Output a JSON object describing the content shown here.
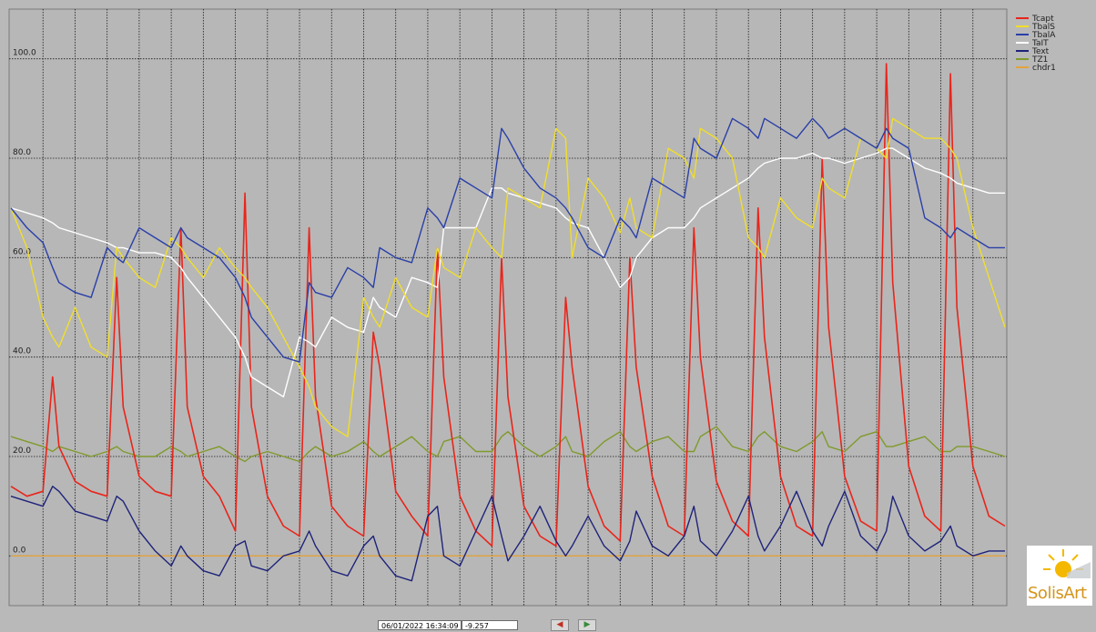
{
  "chart_data": {
    "type": "line",
    "title": "",
    "xlabel": "",
    "ylabel": "",
    "ylim": [
      -10,
      110
    ],
    "xlim": [
      0,
      31
    ],
    "yticks": [
      "0.0",
      "20.0",
      "40.0",
      "60.0",
      "80.0",
      "100.0"
    ],
    "grid": true,
    "legend_position": "top-right",
    "x": [
      0,
      0.5,
      1,
      1.3,
      1.5,
      2,
      2.5,
      3,
      3.3,
      3.5,
      4,
      4.5,
      5,
      5.3,
      5.5,
      6,
      6.5,
      7,
      7.3,
      7.5,
      8,
      8.5,
      9,
      9.3,
      9.5,
      10,
      10.5,
      11,
      11.3,
      11.5,
      12,
      12.5,
      13,
      13.3,
      13.5,
      14,
      14.5,
      15,
      15.3,
      15.5,
      16,
      16.5,
      17,
      17.3,
      17.5,
      18,
      18.5,
      19,
      19.3,
      19.5,
      20,
      20.5,
      21,
      21.3,
      21.5,
      22,
      22.5,
      23,
      23.3,
      23.5,
      24,
      24.5,
      25,
      25.3,
      25.5,
      26,
      26.5,
      27,
      27.3,
      27.5,
      28,
      28.5,
      29,
      29.3,
      29.5,
      30,
      30.5,
      31
    ],
    "series": [
      {
        "name": "Tcapt",
        "color": "#e8251b",
        "values": [
          14,
          12,
          13,
          36,
          22,
          15,
          13,
          12,
          56,
          30,
          16,
          13,
          12,
          66,
          30,
          16,
          12,
          5,
          73,
          30,
          12,
          6,
          4,
          66,
          32,
          10,
          6,
          4,
          45,
          38,
          13,
          8,
          4,
          62,
          36,
          12,
          5,
          2,
          60,
          32,
          10,
          4,
          2,
          52,
          38,
          14,
          6,
          3,
          60,
          38,
          16,
          6,
          4,
          66,
          40,
          15,
          7,
          4,
          70,
          44,
          16,
          6,
          4,
          80,
          46,
          16,
          7,
          5,
          99,
          55,
          18,
          8,
          5,
          97,
          50,
          18,
          8,
          6
        ]
      },
      {
        "name": "TbalS",
        "color": "#f1de2a",
        "values": [
          70,
          62,
          48,
          44,
          42,
          50,
          42,
          40,
          62,
          60,
          56,
          54,
          64,
          62,
          60,
          56,
          62,
          58,
          56,
          54,
          50,
          44,
          38,
          34,
          30,
          26,
          24,
          52,
          48,
          46,
          56,
          50,
          48,
          62,
          58,
          56,
          66,
          62,
          60,
          74,
          72,
          70,
          86,
          84,
          60,
          76,
          72,
          65,
          72,
          66,
          64,
          82,
          80,
          76,
          86,
          84,
          80,
          64,
          62,
          60,
          72,
          68,
          66,
          76,
          74,
          72,
          84,
          82,
          80,
          88,
          86,
          84,
          84,
          82,
          80,
          66,
          56,
          46
        ]
      },
      {
        "name": "TbalA",
        "color": "#2a3fa8",
        "values": [
          70,
          66,
          63,
          58,
          55,
          53,
          52,
          62,
          60,
          59,
          66,
          64,
          62,
          66,
          64,
          62,
          60,
          56,
          52,
          48,
          44,
          40,
          39,
          55,
          53,
          52,
          58,
          56,
          54,
          62,
          60,
          59,
          70,
          68,
          66,
          76,
          74,
          72,
          86,
          84,
          78,
          74,
          72,
          70,
          68,
          62,
          60,
          68,
          66,
          64,
          76,
          74,
          72,
          84,
          82,
          80,
          88,
          86,
          84,
          88,
          86,
          84,
          88,
          86,
          84,
          86,
          84,
          82,
          86,
          84,
          82,
          68,
          66,
          64,
          66,
          64,
          62,
          62
        ]
      },
      {
        "name": "TaIT",
        "color": "#ffffff",
        "values": [
          70,
          69,
          68,
          67,
          66,
          65,
          64,
          63,
          62,
          62,
          61,
          61,
          60,
          58,
          56,
          52,
          48,
          44,
          40,
          36,
          34,
          32,
          44,
          43,
          42,
          48,
          46,
          45,
          52,
          50,
          48,
          56,
          55,
          54,
          66,
          66,
          66,
          74,
          74,
          73,
          72,
          71,
          70,
          68,
          67,
          66,
          60,
          54,
          56,
          60,
          64,
          66,
          66,
          68,
          70,
          72,
          74,
          76,
          78,
          79,
          80,
          80,
          81,
          80,
          80,
          79,
          80,
          81,
          82,
          82,
          80,
          78,
          77,
          76,
          75,
          74,
          73,
          73
        ]
      },
      {
        "name": "Text",
        "color": "#1e237a",
        "values": [
          12,
          11,
          10,
          14,
          13,
          9,
          8,
          7,
          12,
          11,
          5,
          1,
          -2,
          2,
          0,
          -3,
          -4,
          2,
          3,
          -2,
          -3,
          0,
          1,
          5,
          2,
          -3,
          -4,
          2,
          4,
          0,
          -4,
          -5,
          8,
          10,
          0,
          -2,
          5,
          12,
          4,
          -1,
          4,
          10,
          3,
          0,
          2,
          8,
          2,
          -1,
          3,
          9,
          2,
          0,
          4,
          10,
          3,
          0,
          5,
          12,
          4,
          1,
          6,
          13,
          5,
          2,
          6,
          13,
          4,
          1,
          5,
          12,
          4,
          1,
          3,
          6,
          2,
          0,
          1,
          1
        ]
      },
      {
        "name": "TZ1",
        "color": "#7f9a2c",
        "values": [
          24,
          23,
          22,
          21,
          22,
          21,
          20,
          21,
          22,
          21,
          20,
          20,
          22,
          21,
          20,
          21,
          22,
          20,
          19,
          20,
          21,
          20,
          19,
          21,
          22,
          20,
          21,
          23,
          21,
          20,
          22,
          24,
          21,
          20,
          23,
          24,
          21,
          21,
          24,
          25,
          22,
          20,
          22,
          24,
          21,
          20,
          23,
          25,
          22,
          21,
          23,
          24,
          21,
          21,
          24,
          26,
          22,
          21,
          24,
          25,
          22,
          21,
          23,
          25,
          22,
          21,
          24,
          25,
          22,
          22,
          23,
          24,
          21,
          21,
          22,
          22,
          21,
          20
        ]
      },
      {
        "name": "chdr1",
        "color": "#e3a33d",
        "values": [
          0,
          0,
          0,
          0,
          0,
          0,
          0,
          0,
          0,
          0,
          0,
          0,
          0,
          0,
          0,
          0,
          0,
          0,
          0,
          0,
          0,
          0,
          0,
          0,
          0,
          0,
          0,
          0,
          0,
          0,
          0,
          0,
          0,
          0,
          0,
          0,
          0,
          0,
          0,
          0,
          0,
          0,
          0,
          0,
          0,
          0,
          0,
          0,
          0,
          0,
          0,
          0,
          0,
          0,
          0,
          0,
          0,
          0,
          0,
          0,
          0,
          0,
          0,
          0,
          0,
          0,
          0,
          0,
          0,
          0,
          0,
          0,
          0,
          0,
          0,
          0,
          0,
          0
        ]
      }
    ]
  },
  "statusbar": {
    "date": "06/01/2022 16:34:09",
    "value": "-9.257",
    "prev_icon": "left-arrow-icon",
    "next_icon": "right-arrow-icon"
  },
  "logo": {
    "text": "SolisArt",
    "icon": "sun-icon",
    "colors": [
      "#f5b800",
      "#d4951c"
    ]
  }
}
